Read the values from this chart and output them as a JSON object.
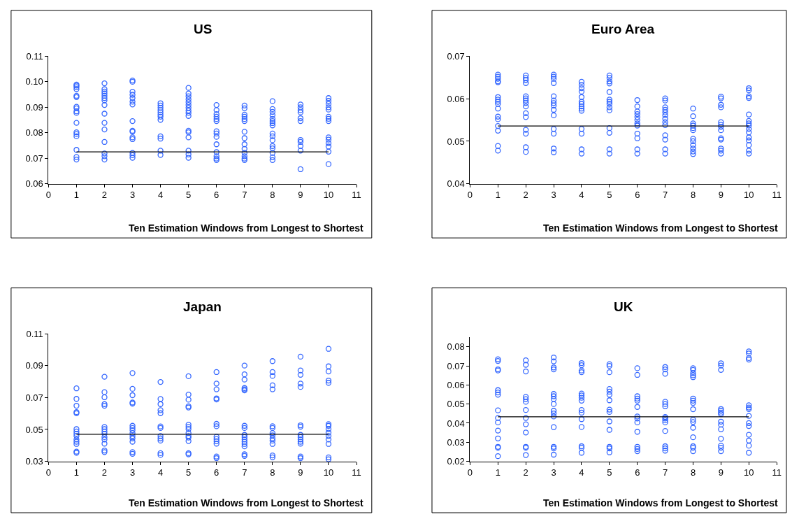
{
  "chart_data": [
    {
      "type": "scatter",
      "title": "US",
      "xlabel": "Ten Estimation Windows from Longest to Shortest",
      "xlim": [
        0,
        11
      ],
      "xticks": [
        0,
        1,
        2,
        3,
        4,
        5,
        6,
        7,
        8,
        9,
        10,
        11
      ],
      "ylim": [
        0.06,
        0.11
      ],
      "yticks": [
        0.06,
        0.07,
        0.08,
        0.09,
        {
          "value": 0.1,
          "label": "0.10"
        },
        0.11
      ],
      "series": [
        {
          "color": "#3366ff",
          "marker": "circle",
          "x": [
            1,
            1,
            1,
            1,
            1,
            1,
            1,
            1,
            1,
            1,
            1,
            1,
            1,
            1,
            1,
            1,
            1,
            2,
            2,
            2,
            2,
            2,
            2,
            2,
            2,
            2,
            2,
            2,
            2,
            2,
            2,
            2,
            3,
            3,
            3,
            3,
            3,
            3,
            3,
            3,
            3,
            3,
            3,
            3,
            3,
            3,
            3,
            4,
            4,
            4,
            4,
            4,
            4,
            4,
            4,
            4,
            4,
            4,
            4,
            5,
            5,
            5,
            5,
            5,
            5,
            5,
            5,
            5,
            5,
            5,
            5,
            5,
            5,
            5,
            5,
            6,
            6,
            6,
            6,
            6,
            6,
            6,
            6,
            6,
            6,
            6,
            6,
            6,
            6,
            7,
            7,
            7,
            7,
            7,
            7,
            7,
            7,
            7,
            7,
            7,
            7,
            7,
            7,
            8,
            8,
            8,
            8,
            8,
            8,
            8,
            8,
            8,
            8,
            8,
            8,
            8,
            8,
            8,
            8,
            9,
            9,
            9,
            9,
            9,
            9,
            9,
            9,
            9,
            9,
            9,
            10,
            10,
            10,
            10,
            10,
            10,
            10,
            10,
            10,
            10,
            10,
            10,
            10,
            10
          ],
          "values": [
            0.0989,
            0.0985,
            0.0979,
            0.0971,
            0.0945,
            0.094,
            0.0902,
            0.0896,
            0.0884,
            0.0878,
            0.0839,
            0.0802,
            0.0795,
            0.0786,
            0.0733,
            0.0705,
            0.0695,
            0.0994,
            0.0971,
            0.0962,
            0.0954,
            0.0945,
            0.0936,
            0.0927,
            0.0909,
            0.0875,
            0.0839,
            0.0813,
            0.0764,
            0.0719,
            0.0708,
            0.0695,
            0.1005,
            0.1,
            0.0961,
            0.0949,
            0.0936,
            0.0922,
            0.0911,
            0.0846,
            0.0808,
            0.0804,
            0.0782,
            0.0775,
            0.0721,
            0.0712,
            0.0702,
            0.0916,
            0.0907,
            0.0898,
            0.0889,
            0.088,
            0.0871,
            0.0863,
            0.0851,
            0.0786,
            0.0777,
            0.073,
            0.0713,
            0.0976,
            0.0954,
            0.0943,
            0.0931,
            0.092,
            0.0909,
            0.0898,
            0.0887,
            0.0878,
            0.0866,
            0.0808,
            0.0802,
            0.0782,
            0.073,
            0.0715,
            0.0702,
            0.0909,
            0.0889,
            0.0873,
            0.0863,
            0.0854,
            0.0846,
            0.0806,
            0.0797,
            0.0784,
            0.0755,
            0.0724,
            0.0708,
            0.0699,
            0.0693,
            0.0907,
            0.0896,
            0.0871,
            0.0863,
            0.0854,
            0.0846,
            0.0804,
            0.0779,
            0.0755,
            0.0737,
            0.0721,
            0.0708,
            0.0699,
            0.0693,
            0.0924,
            0.0893,
            0.0882,
            0.0869,
            0.0855,
            0.0846,
            0.0838,
            0.0829,
            0.0797,
            0.0786,
            0.0771,
            0.0748,
            0.0739,
            0.0721,
            0.0704,
            0.0693,
            0.0911,
            0.09,
            0.0889,
            0.088,
            0.0857,
            0.0846,
            0.0772,
            0.0764,
            0.0748,
            0.073,
            0.0657,
            0.0936,
            0.0925,
            0.0913,
            0.09,
            0.0891,
            0.0863,
            0.0855,
            0.0846,
            0.0782,
            0.0773,
            0.0759,
            0.0746,
            0.0726,
            0.0677
          ]
        },
        {
          "type": "line",
          "color": "#000000",
          "x": [
            1,
            10
          ],
          "values": [
            0.0725,
            0.0725
          ]
        }
      ]
    },
    {
      "type": "scatter",
      "title": "Euro Area",
      "xlabel": "Ten Estimation Windows from Longest to Shortest",
      "xlim": [
        0,
        11
      ],
      "xticks": [
        0,
        1,
        2,
        3,
        4,
        5,
        6,
        7,
        8,
        9,
        10,
        11
      ],
      "ylim": [
        0.04,
        0.07
      ],
      "yticks": [
        0.04,
        0.05,
        0.06,
        0.07
      ],
      "series": [
        {
          "color": "#3366ff",
          "marker": "circle",
          "x": [
            1,
            1,
            1,
            1,
            1,
            1,
            1,
            1,
            1,
            1,
            1,
            1,
            1,
            1,
            1,
            1,
            2,
            2,
            2,
            2,
            2,
            2,
            2,
            2,
            2,
            2,
            2,
            2,
            2,
            2,
            2,
            3,
            3,
            3,
            3,
            3,
            3,
            3,
            3,
            3,
            3,
            3,
            3,
            3,
            3,
            4,
            4,
            4,
            4,
            4,
            4,
            4,
            4,
            4,
            4,
            4,
            4,
            4,
            4,
            5,
            5,
            5,
            5,
            5,
            5,
            5,
            5,
            5,
            5,
            5,
            5,
            5,
            5,
            6,
            6,
            6,
            6,
            6,
            6,
            6,
            6,
            6,
            6,
            6,
            6,
            7,
            7,
            7,
            7,
            7,
            7,
            7,
            7,
            7,
            7,
            7,
            7,
            7,
            8,
            8,
            8,
            8,
            8,
            8,
            8,
            8,
            8,
            8,
            8,
            8,
            9,
            9,
            9,
            9,
            9,
            9,
            9,
            9,
            9,
            9,
            9,
            9,
            9,
            10,
            10,
            10,
            10,
            10,
            10,
            10,
            10,
            10,
            10,
            10,
            10,
            10,
            10,
            10
          ],
          "values": [
            0.0657,
            0.0652,
            0.0647,
            0.0641,
            0.0639,
            0.0604,
            0.0598,
            0.0593,
            0.0588,
            0.0577,
            0.0558,
            0.0552,
            0.0536,
            0.0525,
            0.0489,
            0.0478,
            0.0655,
            0.0649,
            0.0644,
            0.0637,
            0.0606,
            0.0601,
            0.0596,
            0.059,
            0.0582,
            0.0566,
            0.0557,
            0.0527,
            0.0518,
            0.0486,
            0.0475,
            0.0657,
            0.0652,
            0.0647,
            0.0637,
            0.0606,
            0.0596,
            0.059,
            0.0584,
            0.0574,
            0.0561,
            0.0529,
            0.0518,
            0.0483,
            0.0474,
            0.064,
            0.0633,
            0.0625,
            0.0617,
            0.0604,
            0.0593,
            0.0588,
            0.0582,
            0.0577,
            0.0572,
            0.0529,
            0.0518,
            0.0481,
            0.0471,
            0.0655,
            0.0649,
            0.0641,
            0.0636,
            0.0616,
            0.0598,
            0.0593,
            0.0588,
            0.058,
            0.0573,
            0.0531,
            0.052,
            0.0481,
            0.0471,
            0.0597,
            0.0582,
            0.057,
            0.0564,
            0.0557,
            0.055,
            0.0542,
            0.0537,
            0.0518,
            0.0507,
            0.0481,
            0.0471,
            0.0601,
            0.0596,
            0.058,
            0.0574,
            0.0568,
            0.0561,
            0.0553,
            0.0545,
            0.0538,
            0.0514,
            0.0504,
            0.0481,
            0.0471,
            0.0577,
            0.0559,
            0.0542,
            0.0537,
            0.0531,
            0.0526,
            0.0506,
            0.05,
            0.0491,
            0.0483,
            0.0476,
            0.047,
            0.0605,
            0.0601,
            0.0586,
            0.058,
            0.0545,
            0.0539,
            0.0534,
            0.0526,
            0.0507,
            0.0504,
            0.0483,
            0.0478,
            0.0471,
            0.0625,
            0.062,
            0.0606,
            0.0602,
            0.0563,
            0.0548,
            0.0542,
            0.0537,
            0.0529,
            0.0521,
            0.0509,
            0.0502,
            0.0491,
            0.0478,
            0.0471
          ]
        },
        {
          "type": "line",
          "color": "#000000",
          "x": [
            1,
            10
          ],
          "values": [
            0.0536,
            0.0536
          ]
        }
      ]
    },
    {
      "type": "scatter",
      "title": "Japan",
      "xlabel": "Ten Estimation Windows from Longest to Shortest",
      "xlim": [
        0,
        11
      ],
      "xticks": [
        0,
        1,
        2,
        3,
        4,
        5,
        6,
        7,
        8,
        9,
        10,
        11
      ],
      "ylim": [
        0.03,
        0.11
      ],
      "yticks": [
        0.03,
        0.05,
        0.07,
        0.09,
        0.11
      ],
      "series": [
        {
          "color": "#3366ff",
          "marker": "circle",
          "x": [
            1,
            1,
            1,
            1,
            1,
            1,
            1,
            1,
            1,
            1,
            1,
            1,
            1,
            1,
            2,
            2,
            2,
            2,
            2,
            2,
            2,
            2,
            2,
            2,
            2,
            2,
            2,
            2,
            3,
            3,
            3,
            3,
            3,
            3,
            3,
            3,
            3,
            3,
            3,
            3,
            3,
            3,
            4,
            4,
            4,
            4,
            4,
            4,
            4,
            4,
            4,
            4,
            4,
            4,
            5,
            5,
            5,
            5,
            5,
            5,
            5,
            5,
            5,
            5,
            5,
            5,
            5,
            5,
            6,
            6,
            6,
            6,
            6,
            6,
            6,
            6,
            6,
            6,
            6,
            6,
            6,
            7,
            7,
            7,
            7,
            7,
            7,
            7,
            7,
            7,
            7,
            7,
            7,
            7,
            7,
            7,
            7,
            8,
            8,
            8,
            8,
            8,
            8,
            8,
            8,
            8,
            8,
            8,
            8,
            8,
            8,
            9,
            9,
            9,
            9,
            9,
            9,
            9,
            9,
            9,
            9,
            9,
            9,
            9,
            9,
            10,
            10,
            10,
            10,
            10,
            10,
            10,
            10,
            10,
            10,
            10,
            10,
            10,
            10
          ],
          "values": [
            0.0758,
            0.0692,
            0.0649,
            0.0609,
            0.0602,
            0.0502,
            0.0487,
            0.0473,
            0.0459,
            0.0437,
            0.0423,
            0.0409,
            0.0361,
            0.0354,
            0.0831,
            0.0734,
            0.0702,
            0.0659,
            0.0649,
            0.0516,
            0.0502,
            0.0487,
            0.0473,
            0.0452,
            0.0437,
            0.0411,
            0.0368,
            0.0358,
            0.0854,
            0.0755,
            0.0715,
            0.0669,
            0.0662,
            0.0523,
            0.0509,
            0.0495,
            0.0477,
            0.0459,
            0.0444,
            0.0423,
            0.0358,
            0.0347,
            0.0798,
            0.0691,
            0.0659,
            0.0621,
            0.0602,
            0.0519,
            0.0509,
            0.0459,
            0.0444,
            0.043,
            0.0351,
            0.034,
            0.0834,
            0.0719,
            0.0687,
            0.0645,
            0.0638,
            0.053,
            0.0516,
            0.0502,
            0.0477,
            0.0459,
            0.0449,
            0.0427,
            0.0351,
            0.0344,
            0.086,
            0.0788,
            0.0752,
            0.0695,
            0.0688,
            0.0535,
            0.052,
            0.0454,
            0.044,
            0.0426,
            0.0411,
            0.033,
            0.032,
            0.0901,
            0.0846,
            0.0813,
            0.076,
            0.0752,
            0.0745,
            0.0523,
            0.0509,
            0.0466,
            0.0452,
            0.0437,
            0.0423,
            0.0409,
            0.0394,
            0.0344,
            0.0334,
            0.0929,
            0.086,
            0.0836,
            0.0777,
            0.0752,
            0.052,
            0.0509,
            0.0477,
            0.0463,
            0.0444,
            0.043,
            0.0409,
            0.0337,
            0.0325,
            0.0957,
            0.087,
            0.0843,
            0.0788,
            0.0767,
            0.0526,
            0.0517,
            0.0466,
            0.0452,
            0.0437,
            0.0423,
            0.0411,
            0.033,
            0.032,
            0.1006,
            0.0896,
            0.0864,
            0.0807,
            0.0793,
            0.0533,
            0.0523,
            0.0502,
            0.048,
            0.0459,
            0.0437,
            0.0409,
            0.0325,
            0.0313
          ]
        },
        {
          "type": "line",
          "color": "#000000",
          "x": [
            1,
            10
          ],
          "values": [
            0.047,
            0.047
          ]
        }
      ]
    },
    {
      "type": "scatter",
      "title": "UK",
      "xlabel": "Ten Estimation Windows from Longest to Shortest",
      "xlim": [
        0,
        11
      ],
      "xticks": [
        0,
        1,
        2,
        3,
        4,
        5,
        6,
        7,
        8,
        9,
        10,
        11
      ],
      "ylim": [
        0.02,
        0.085
      ],
      "yticks": [
        0.02,
        0.03,
        0.04,
        0.05,
        0.06,
        0.07,
        0.08
      ],
      "series": [
        {
          "color": "#3366ff",
          "marker": "circle",
          "x": [
            1,
            1,
            1,
            1,
            1,
            1,
            1,
            1,
            1,
            1,
            1,
            1,
            1,
            1,
            1,
            2,
            2,
            2,
            2,
            2,
            2,
            2,
            2,
            2,
            2,
            2,
            2,
            2,
            3,
            3,
            3,
            3,
            3,
            3,
            3,
            3,
            3,
            3,
            3,
            3,
            3,
            3,
            3,
            4,
            4,
            4,
            4,
            4,
            4,
            4,
            4,
            4,
            4,
            4,
            4,
            4,
            4,
            4,
            5,
            5,
            5,
            5,
            5,
            5,
            5,
            5,
            5,
            5,
            5,
            5,
            5,
            5,
            6,
            6,
            6,
            6,
            6,
            6,
            6,
            6,
            6,
            6,
            6,
            6,
            6,
            7,
            7,
            7,
            7,
            7,
            7,
            7,
            7,
            7,
            7,
            7,
            7,
            7,
            7,
            8,
            8,
            8,
            8,
            8,
            8,
            8,
            8,
            8,
            8,
            8,
            8,
            8,
            8,
            8,
            8,
            9,
            9,
            9,
            9,
            9,
            9,
            9,
            9,
            9,
            9,
            9,
            9,
            9,
            9,
            10,
            10,
            10,
            10,
            10,
            10,
            10,
            10,
            10,
            10,
            10,
            10,
            10,
            10
          ],
          "values": [
            0.0735,
            0.0726,
            0.0682,
            0.0676,
            0.0573,
            0.0561,
            0.0549,
            0.0467,
            0.0427,
            0.0404,
            0.0361,
            0.032,
            0.0276,
            0.0271,
            0.0227,
            0.0729,
            0.0706,
            0.0671,
            0.0538,
            0.0526,
            0.0512,
            0.0469,
            0.0427,
            0.0394,
            0.0351,
            0.0276,
            0.0271,
            0.0233,
            0.0744,
            0.0724,
            0.0692,
            0.0682,
            0.0553,
            0.0541,
            0.0526,
            0.05,
            0.0465,
            0.0451,
            0.0435,
            0.0379,
            0.0276,
            0.0268,
            0.0235,
            0.0715,
            0.0704,
            0.0676,
            0.0667,
            0.0555,
            0.0545,
            0.0533,
            0.0518,
            0.0469,
            0.0455,
            0.0421,
            0.038,
            0.0279,
            0.0271,
            0.0245,
            0.0709,
            0.07,
            0.0667,
            0.0579,
            0.0565,
            0.0549,
            0.052,
            0.0471,
            0.0459,
            0.0409,
            0.0365,
            0.0276,
            0.0268,
            0.0247,
            0.0688,
            0.0653,
            0.0541,
            0.0529,
            0.0518,
            0.0485,
            0.0435,
            0.0424,
            0.0404,
            0.0355,
            0.0276,
            0.0265,
            0.0253,
            0.0694,
            0.0682,
            0.0659,
            0.0512,
            0.05,
            0.0488,
            0.0432,
            0.0424,
            0.0415,
            0.0404,
            0.0359,
            0.0279,
            0.0268,
            0.0256,
            0.0688,
            0.0679,
            0.0662,
            0.0651,
            0.0641,
            0.0529,
            0.0518,
            0.0506,
            0.0473,
            0.0418,
            0.0406,
            0.0376,
            0.0326,
            0.0279,
            0.0271,
            0.0253,
            0.0714,
            0.0702,
            0.0679,
            0.0474,
            0.0465,
            0.0455,
            0.0447,
            0.0408,
            0.0392,
            0.0368,
            0.0318,
            0.0282,
            0.0271,
            0.0253,
            0.0776,
            0.0765,
            0.0741,
            0.0733,
            0.0494,
            0.0482,
            0.0474,
            0.0438,
            0.04,
            0.0385,
            0.0339,
            0.0309,
            0.0282,
            0.0245
          ]
        },
        {
          "type": "line",
          "color": "#000000",
          "x": [
            1,
            10
          ],
          "values": [
            0.0433,
            0.0433
          ]
        }
      ]
    }
  ]
}
